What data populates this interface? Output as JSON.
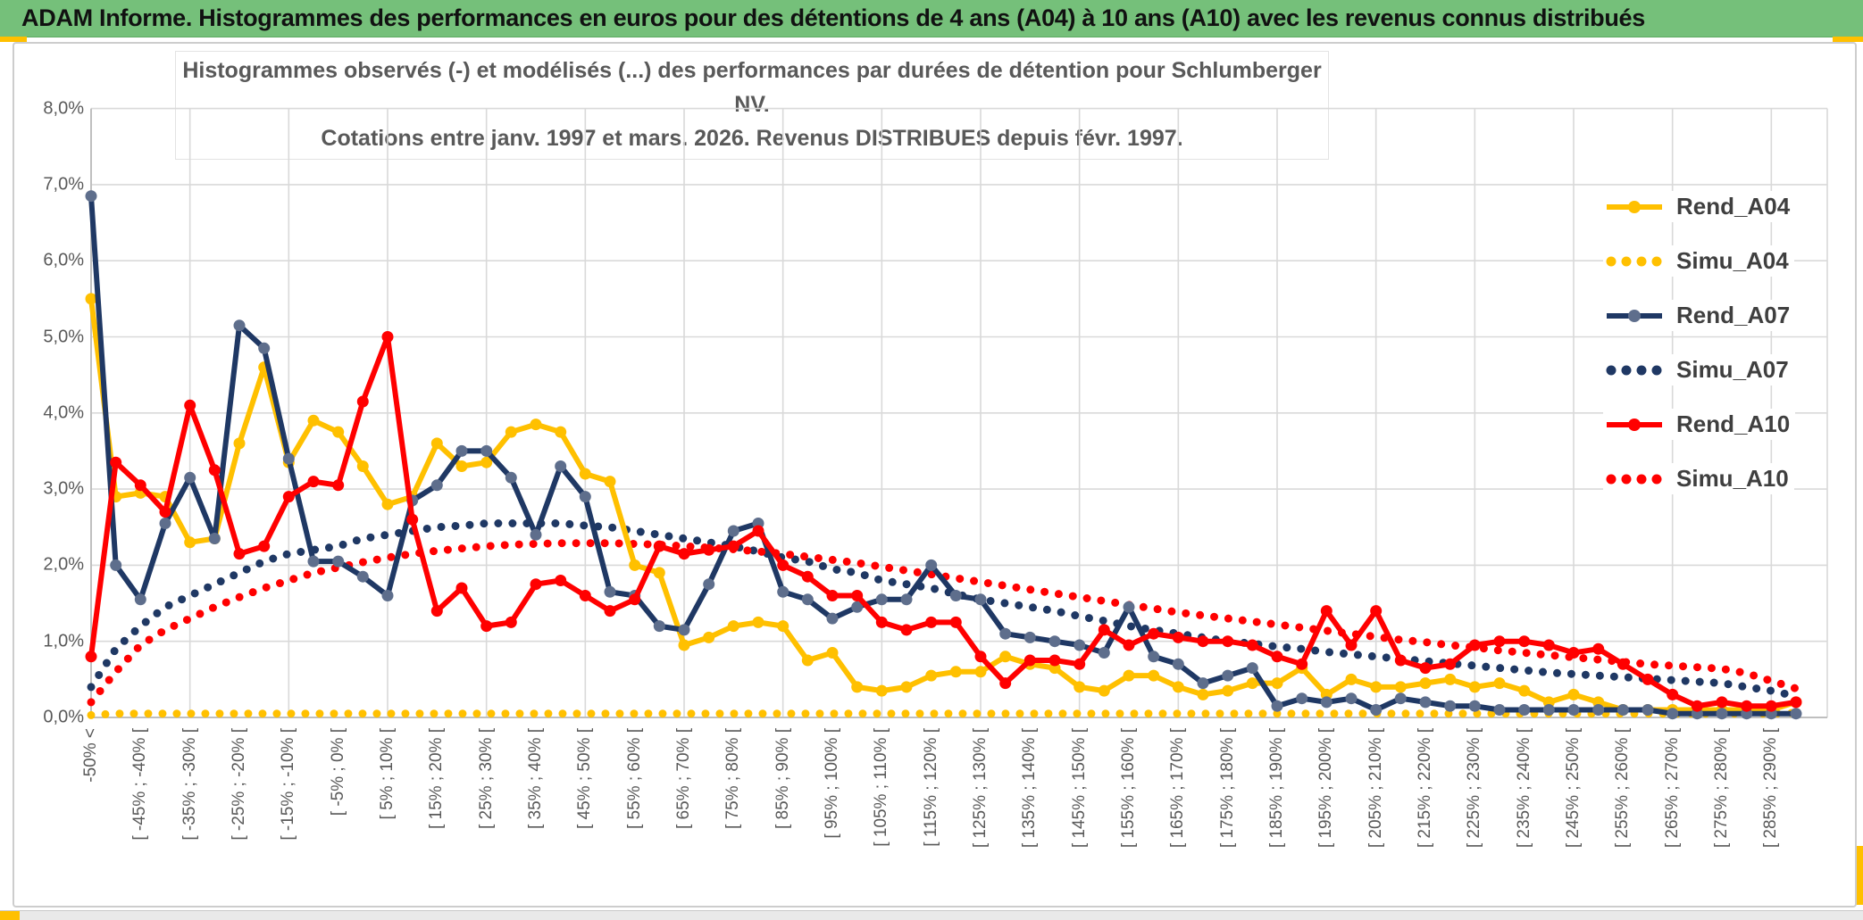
{
  "header": {
    "title": "ADAM Informe. Histogrammes des performances en euros pour des détentions de 4 ans (A04) à 10 ans (A10) avec les revenus connus distribués"
  },
  "chart": {
    "title_line1": "Histogrammes observés (-) et modélisés (...) des performances par durées de détention pour Schlumberger NV.",
    "title_line2": "Cotations entre janv. 1997 et mars. 2026. Revenus DISTRIBUES depuis févr. 1997."
  },
  "colors": {
    "gold": "#FFC000",
    "navy": "#1F3864",
    "red": "#FF0000",
    "navy_marker": "#5E6E8C",
    "gridline": "#D9D9D9",
    "axis_text": "#595959",
    "header_green": "#75C07A"
  },
  "chart_data": {
    "type": "line",
    "title": "Histogrammes observés (-) et modélisés (...) des performances par durées de détention pour Schlumberger NV.",
    "subtitle": "Cotations entre janv. 1997 et mars. 2026. Revenus DISTRIBUES depuis févr. 1997.",
    "ylabel": "",
    "xlabel": "",
    "ylim": [
      0,
      8
    ],
    "y_tick_labels": [
      "8,0%",
      "7,0%",
      "6,0%",
      "5,0%",
      "4,0%",
      "3,0%",
      "2,0%",
      "1,0%",
      "0,0%"
    ],
    "n_categories": 70,
    "x_labels_every_n": 2,
    "x_tick_labels": [
      "-50% <",
      "[ -45% ; -40% [",
      "[ -35% ; -30% [",
      "[ -25% ; -20% [",
      "[ -15% ; -10% [",
      "[ -5% ; 0% [",
      "[ 5% ; 10% [",
      "[ 15% ; 20% [",
      "[ 25% ; 30% [",
      "[ 35% ; 40% [",
      "[ 45% ; 50% [",
      "[ 55% ; 60% [",
      "[ 65% ; 70% [",
      "[ 75% ; 80% [",
      "[ 85% ; 90% [",
      "[ 95% ; 100% [",
      "[ 105% ; 110% [",
      "[ 115% ; 120% [",
      "[ 125% ; 130% [",
      "[ 135% ; 140% [",
      "[ 145% ; 150% [",
      "[ 155% ; 160% [",
      "[ 165% ; 170% [",
      "[ 175% ; 180% [",
      "[ 185% ; 190% [",
      "[ 195% ; 200% [",
      "[ 205% ; 210% [",
      "[ 215% ; 220% [",
      "[ 225% ; 230% [",
      "[ 235% ; 240% [",
      "[ 245% ; 250% [",
      "[ 255% ; 260% [",
      "[ 265% ; 270% [",
      "[ 275% ; 280% [",
      "[ 285% ; 290% ["
    ],
    "legend_position": "right-inside",
    "series": [
      {
        "name": "Rend_A04",
        "style": "solid",
        "color": "#FFC000",
        "marker_color": "#FFC000",
        "values": [
          5.5,
          2.9,
          2.95,
          2.9,
          2.3,
          2.35,
          3.6,
          4.6,
          3.35,
          3.9,
          3.75,
          3.3,
          2.8,
          2.9,
          3.6,
          3.3,
          3.35,
          3.75,
          3.85,
          3.75,
          3.2,
          3.1,
          2.0,
          1.9,
          0.95,
          1.05,
          1.2,
          1.25,
          1.2,
          0.75,
          0.85,
          0.4,
          0.35,
          0.4,
          0.55,
          0.6,
          0.6,
          0.8,
          0.7,
          0.65,
          0.4,
          0.35,
          0.55,
          0.55,
          0.4,
          0.3,
          0.35,
          0.45,
          0.45,
          0.65,
          0.3,
          0.5,
          0.4,
          0.4,
          0.45,
          0.5,
          0.4,
          0.45,
          0.35,
          0.2,
          0.3,
          0.2,
          0.1,
          0.1,
          0.1,
          0.1,
          0.1,
          0.1,
          0.1,
          0.2
        ]
      },
      {
        "name": "Simu_A04",
        "style": "dotted",
        "color": "#FFC000",
        "values": [
          0.03,
          0.05,
          0.05,
          0.05,
          0.05,
          0.05,
          0.05,
          0.05,
          0.05,
          0.05,
          0.05,
          0.05,
          0.05,
          0.05,
          0.05,
          0.05,
          0.05,
          0.05,
          0.05,
          0.05,
          0.05,
          0.05,
          0.05,
          0.05,
          0.05,
          0.05,
          0.05,
          0.05,
          0.05,
          0.05,
          0.05,
          0.05,
          0.05,
          0.05,
          0.05,
          0.05,
          0.05,
          0.05,
          0.05,
          0.05,
          0.05,
          0.05,
          0.05,
          0.05,
          0.05,
          0.05,
          0.05,
          0.05,
          0.05,
          0.05,
          0.05,
          0.05,
          0.05,
          0.05,
          0.05,
          0.05,
          0.05,
          0.05,
          0.05,
          0.05,
          0.05,
          0.05,
          0.05,
          0.05,
          0.05,
          0.05,
          0.05,
          0.05,
          0.05,
          0.06
        ]
      },
      {
        "name": "Rend_A07",
        "style": "solid",
        "color": "#1F3864",
        "marker_color": "#5E6E8C",
        "values": [
          6.85,
          2.0,
          1.55,
          2.55,
          3.15,
          2.35,
          5.15,
          4.85,
          3.4,
          2.05,
          2.05,
          1.85,
          1.6,
          2.85,
          3.05,
          3.5,
          3.5,
          3.15,
          2.4,
          3.3,
          2.9,
          1.65,
          1.6,
          1.2,
          1.15,
          1.75,
          2.45,
          2.55,
          1.65,
          1.55,
          1.3,
          1.45,
          1.55,
          1.55,
          2.0,
          1.6,
          1.55,
          1.1,
          1.05,
          1.0,
          0.95,
          0.85,
          1.45,
          0.8,
          0.7,
          0.45,
          0.55,
          0.65,
          0.15,
          0.25,
          0.2,
          0.25,
          0.1,
          0.25,
          0.2,
          0.15,
          0.15,
          0.1,
          0.1,
          0.1,
          0.1,
          0.1,
          0.1,
          0.1,
          0.05,
          0.05,
          0.05,
          0.05,
          0.05,
          0.05
        ]
      },
      {
        "name": "Simu_A07",
        "style": "dotted",
        "color": "#1F3864",
        "values": [
          0.4,
          0.9,
          1.2,
          1.45,
          1.6,
          1.75,
          1.9,
          2.05,
          2.15,
          2.2,
          2.25,
          2.35,
          2.4,
          2.45,
          2.5,
          2.52,
          2.55,
          2.55,
          2.55,
          2.55,
          2.52,
          2.5,
          2.45,
          2.4,
          2.35,
          2.3,
          2.25,
          2.18,
          2.1,
          2.05,
          1.95,
          1.9,
          1.8,
          1.75,
          1.7,
          1.62,
          1.55,
          1.5,
          1.45,
          1.4,
          1.33,
          1.27,
          1.2,
          1.15,
          1.1,
          1.05,
          1.0,
          0.97,
          0.93,
          0.9,
          0.86,
          0.83,
          0.8,
          0.77,
          0.74,
          0.71,
          0.68,
          0.65,
          0.62,
          0.59,
          0.57,
          0.55,
          0.53,
          0.51,
          0.49,
          0.47,
          0.45,
          0.4,
          0.35,
          0.28
        ]
      },
      {
        "name": "Rend_A10",
        "style": "solid",
        "color": "#FF0000",
        "marker_color": "#FF0000",
        "values": [
          0.8,
          3.35,
          3.05,
          2.7,
          4.1,
          3.25,
          2.15,
          2.25,
          2.9,
          3.1,
          3.05,
          4.15,
          5.0,
          2.6,
          1.4,
          1.7,
          1.2,
          1.25,
          1.75,
          1.8,
          1.6,
          1.4,
          1.55,
          2.25,
          2.15,
          2.2,
          2.25,
          2.45,
          2.0,
          1.85,
          1.6,
          1.6,
          1.25,
          1.15,
          1.25,
          1.25,
          0.8,
          0.45,
          0.75,
          0.75,
          0.7,
          1.15,
          0.95,
          1.1,
          1.05,
          1.0,
          1.0,
          0.95,
          0.8,
          0.7,
          1.4,
          0.95,
          1.4,
          0.75,
          0.65,
          0.7,
          0.95,
          1.0,
          1.0,
          0.95,
          0.85,
          0.9,
          0.7,
          0.5,
          0.3,
          0.15,
          0.2,
          0.15,
          0.15,
          0.2
        ]
      },
      {
        "name": "Simu_A10",
        "style": "dotted",
        "color": "#FF0000",
        "values": [
          0.2,
          0.6,
          0.95,
          1.15,
          1.3,
          1.45,
          1.58,
          1.7,
          1.8,
          1.9,
          1.97,
          2.04,
          2.1,
          2.15,
          2.19,
          2.22,
          2.25,
          2.27,
          2.28,
          2.29,
          2.29,
          2.29,
          2.28,
          2.27,
          2.25,
          2.23,
          2.21,
          2.18,
          2.15,
          2.11,
          2.07,
          2.03,
          1.98,
          1.93,
          1.88,
          1.83,
          1.78,
          1.73,
          1.68,
          1.63,
          1.58,
          1.53,
          1.48,
          1.43,
          1.38,
          1.34,
          1.3,
          1.26,
          1.22,
          1.18,
          1.14,
          1.1,
          1.06,
          1.02,
          0.99,
          0.95,
          0.92,
          0.88,
          0.85,
          0.82,
          0.79,
          0.76,
          0.73,
          0.7,
          0.68,
          0.66,
          0.64,
          0.58,
          0.48,
          0.38
        ]
      }
    ],
    "legend": [
      "Rend_A04",
      "Simu_A04",
      "Rend_A07",
      "Simu_A07",
      "Rend_A10",
      "Simu_A10"
    ]
  }
}
